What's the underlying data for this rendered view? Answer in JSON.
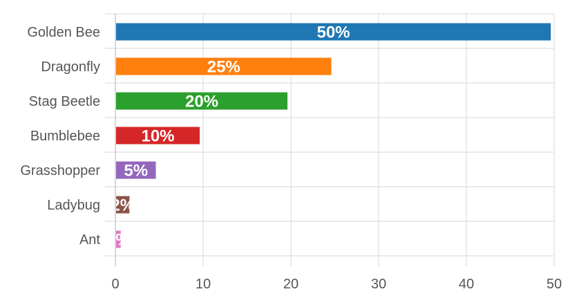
{
  "chart_data": {
    "type": "bar",
    "orientation": "horizontal",
    "categories": [
      "Golden Bee",
      "Dragonfly",
      "Stag Beetle",
      "Bumblebee",
      "Grasshopper",
      "Ladybug",
      "Ant"
    ],
    "values": [
      50,
      25,
      20,
      10,
      5,
      2,
      1
    ],
    "value_labels": [
      "50%",
      "25%",
      "20%",
      "10%",
      "5%",
      "2%",
      "1%"
    ],
    "colors": [
      "#1f77b4",
      "#ff7f0e",
      "#2ca02c",
      "#d62728",
      "#9467bd",
      "#8c564b",
      "#e377c2"
    ],
    "xticks": [
      0,
      10,
      20,
      30,
      40,
      50
    ],
    "xlim": [
      0,
      50
    ],
    "title": "",
    "xlabel": "",
    "ylabel": "",
    "grid": true,
    "legend": "none"
  }
}
